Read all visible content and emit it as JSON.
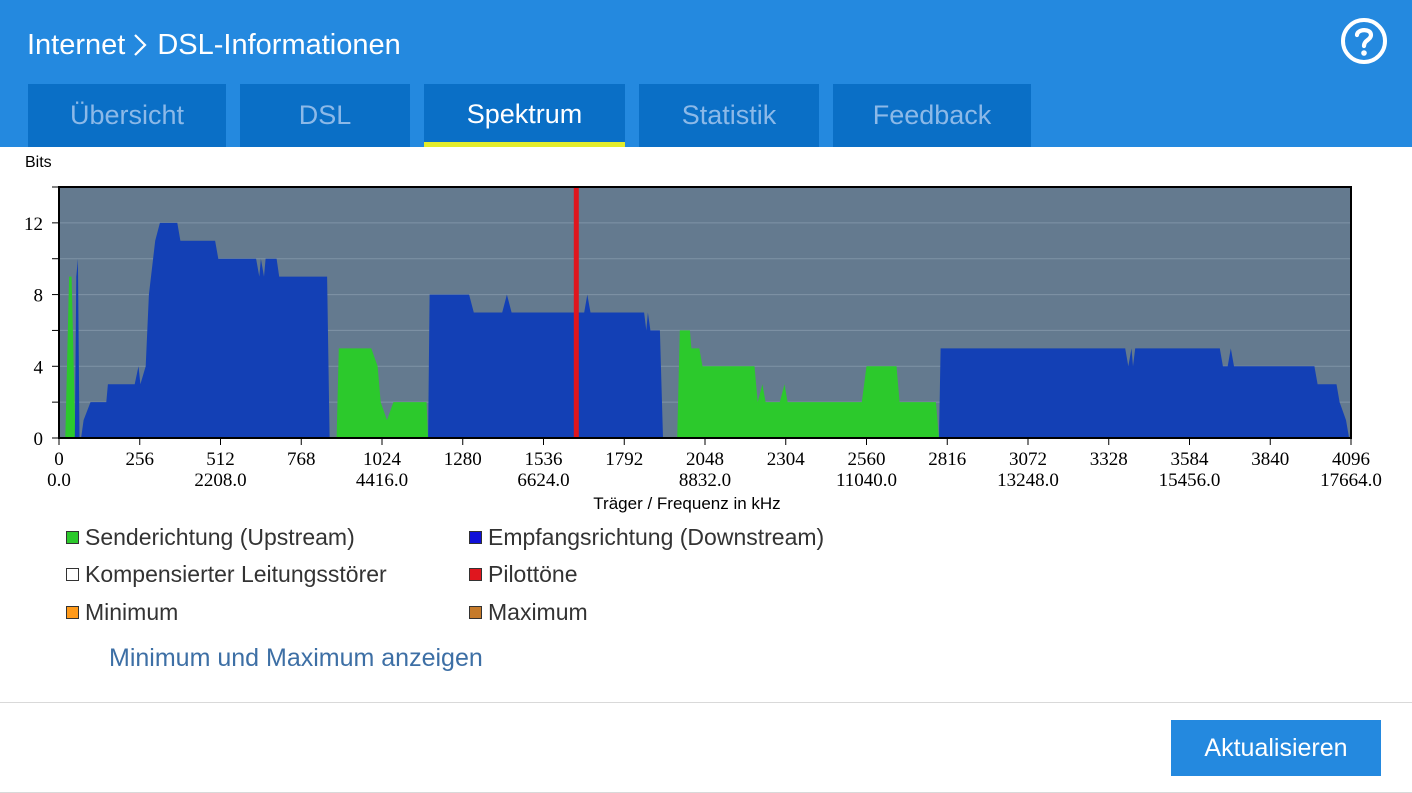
{
  "header": {
    "breadcrumb": [
      "Internet",
      "DSL-Informationen"
    ],
    "help_icon": "help-circle-icon"
  },
  "tabs": [
    {
      "label": "Übersicht",
      "active": false
    },
    {
      "label": "DSL",
      "active": false
    },
    {
      "label": "Spektrum",
      "active": true
    },
    {
      "label": "Statistik",
      "active": false
    },
    {
      "label": "Feedback",
      "active": false
    }
  ],
  "chart_data": {
    "type": "area",
    "ylabel": "Bits",
    "xlabel": "Träger / Frequenz in kHz",
    "xlim": [
      0,
      4096
    ],
    "ylim": [
      0,
      14
    ],
    "yticks": [
      0,
      4,
      8,
      12
    ],
    "xticks_carrier": [
      "0",
      "256",
      "512",
      "768",
      "1024",
      "1280",
      "1536",
      "1792",
      "2048",
      "2304",
      "2560",
      "2816",
      "3072",
      "3328",
      "3584",
      "3840",
      "4096"
    ],
    "xticks_freq": [
      "0.0",
      "2208.0",
      "4416.0",
      "6624.0",
      "8832.0",
      "11040.0",
      "13248.0",
      "15456.0",
      "17664.0"
    ],
    "grid": true,
    "pilot_tone_carrier": 1640,
    "colors": {
      "background": "#647a8f",
      "upstream": "#2cc92c",
      "downstream": "#1340b5",
      "pilot": "#e0161e"
    },
    "series": [
      {
        "name": "Senderichtung (Upstream)",
        "color": "#2cc92c",
        "segments": [
          [
            [
              20,
              0
            ],
            [
              32,
              9
            ],
            [
              40,
              9
            ],
            [
              52,
              0
            ]
          ],
          [
            [
              880,
              0
            ],
            [
              887,
              5
            ],
            [
              990,
              5
            ],
            [
              1010,
              4
            ],
            [
              1020,
              2
            ],
            [
              1040,
              1
            ],
            [
              1060,
              2
            ],
            [
              1165,
              2
            ],
            [
              1170,
              0
            ]
          ],
          [
            [
              1960,
              0
            ],
            [
              1968,
              6
            ],
            [
              2000,
              6
            ],
            [
              2005,
              5
            ],
            [
              2030,
              5
            ],
            [
              2040,
              4
            ],
            [
              2205,
              4
            ],
            [
              2215,
              2
            ],
            [
              2230,
              3
            ],
            [
              2240,
              2
            ],
            [
              2285,
              2
            ],
            [
              2300,
              3
            ],
            [
              2310,
              2
            ],
            [
              2545,
              2
            ],
            [
              2560,
              4
            ],
            [
              2655,
              4
            ],
            [
              2665,
              2
            ],
            [
              2780,
              2
            ],
            [
              2790,
              0
            ]
          ]
        ]
      },
      {
        "name": "Empfangsrichtung (Downstream)",
        "color": "#1340b5",
        "segments": [
          [
            [
              50,
              0
            ],
            [
              55,
              9
            ],
            [
              60,
              10
            ],
            [
              65,
              0
            ]
          ],
          [
            [
              70,
              0
            ],
            [
              78,
              1
            ],
            [
              100,
              2
            ],
            [
              150,
              2
            ],
            [
              155,
              3
            ],
            [
              240,
              3
            ],
            [
              252,
              4
            ],
            [
              258,
              3
            ],
            [
              275,
              4
            ],
            [
              285,
              8
            ],
            [
              305,
              11
            ],
            [
              320,
              12
            ],
            [
              375,
              12
            ],
            [
              385,
              11
            ],
            [
              495,
              11
            ],
            [
              505,
              10
            ],
            [
              625,
              10
            ],
            [
              635,
              9
            ],
            [
              640,
              10
            ],
            [
              650,
              9
            ],
            [
              655,
              10
            ],
            [
              690,
              10
            ],
            [
              698,
              9
            ],
            [
              850,
              9
            ],
            [
              858,
              0
            ]
          ],
          [
            [
              1170,
              0
            ],
            [
              1175,
              8
            ],
            [
              1300,
              8
            ],
            [
              1315,
              7
            ],
            [
              1405,
              7
            ],
            [
              1420,
              8
            ],
            [
              1435,
              7
            ],
            [
              1665,
              7
            ],
            [
              1675,
              8
            ],
            [
              1685,
              7
            ],
            [
              1855,
              7
            ],
            [
              1862,
              6
            ],
            [
              1867,
              7
            ],
            [
              1875,
              6
            ],
            [
              1905,
              6
            ],
            [
              1915,
              0
            ]
          ],
          [
            [
              2790,
              0
            ],
            [
              2795,
              5
            ],
            [
              3380,
              5
            ],
            [
              3390,
              4
            ],
            [
              3400,
              5
            ],
            [
              3405,
              4
            ],
            [
              3412,
              5
            ],
            [
              3680,
              5
            ],
            [
              3690,
              4
            ],
            [
              3705,
              4
            ],
            [
              3715,
              5
            ],
            [
              3725,
              4
            ],
            [
              3980,
              4
            ],
            [
              3990,
              3
            ],
            [
              4050,
              3
            ],
            [
              4060,
              2
            ],
            [
              4080,
              1
            ],
            [
              4090,
              0
            ]
          ]
        ]
      }
    ]
  },
  "legend": [
    {
      "label": "Senderichtung (Upstream)",
      "color": "#2cc92c"
    },
    {
      "label": "Empfangsrichtung (Downstream)",
      "color": "#1010d8"
    },
    {
      "label": "Kompensierter Leitungsstörer",
      "color": "#ffffff"
    },
    {
      "label": "Pilottöne",
      "color": "#e0161e"
    },
    {
      "label": "Minimum",
      "color": "#ff9a1a"
    },
    {
      "label": "Maximum",
      "color": "#c57a2a"
    }
  ],
  "links": {
    "minmax": "Minimum und Maximum anzeigen"
  },
  "buttons": {
    "refresh": "Aktualisieren"
  }
}
